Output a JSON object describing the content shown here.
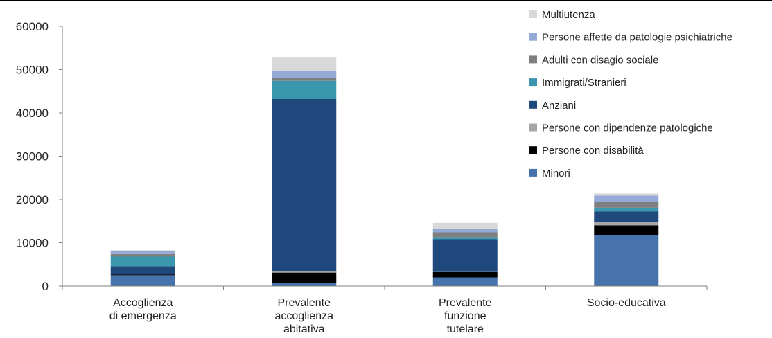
{
  "chart_data": {
    "type": "bar",
    "stacked": true,
    "categories": [
      [
        "Accoglienza",
        "di emergenza"
      ],
      [
        "Prevalente",
        "accoglienza",
        "abitativa"
      ],
      [
        "Prevalente",
        "funzione",
        "tutelare"
      ],
      [
        "Socio-educativa"
      ]
    ],
    "ylim": [
      0,
      60000
    ],
    "yticks": [
      0,
      10000,
      20000,
      30000,
      40000,
      50000,
      60000
    ],
    "grid": false,
    "legend_position": "top-right",
    "series": [
      {
        "name": "Minori",
        "color": "#4673ac",
        "values": [
          2500,
          700,
          2000,
          11700
        ]
      },
      {
        "name": "Persone con disabilità",
        "color": "#000000",
        "values": [
          200,
          2400,
          1300,
          2300
        ]
      },
      {
        "name": "Persone con dipendenze patologiche",
        "color": "#a6a6a6",
        "values": [
          0,
          400,
          100,
          800
        ]
      },
      {
        "name": "Anziani",
        "color": "#1f497d",
        "values": [
          1900,
          39700,
          7400,
          2400
        ]
      },
      {
        "name": "Immigrati/Stranieri",
        "color": "#3b97ad",
        "values": [
          2200,
          4200,
          500,
          900
        ]
      },
      {
        "name": "Adulti con disagio sociale",
        "color": "#7f7f7f",
        "values": [
          600,
          600,
          1100,
          1300
        ]
      },
      {
        "name": "Persone affette da patologie psichiatriche",
        "color": "#93a9d6",
        "values": [
          600,
          1600,
          800,
          1500
        ]
      },
      {
        "name": "Multiutenza",
        "color": "#d9d9d9",
        "values": [
          300,
          3200,
          1400,
          500
        ]
      }
    ]
  }
}
